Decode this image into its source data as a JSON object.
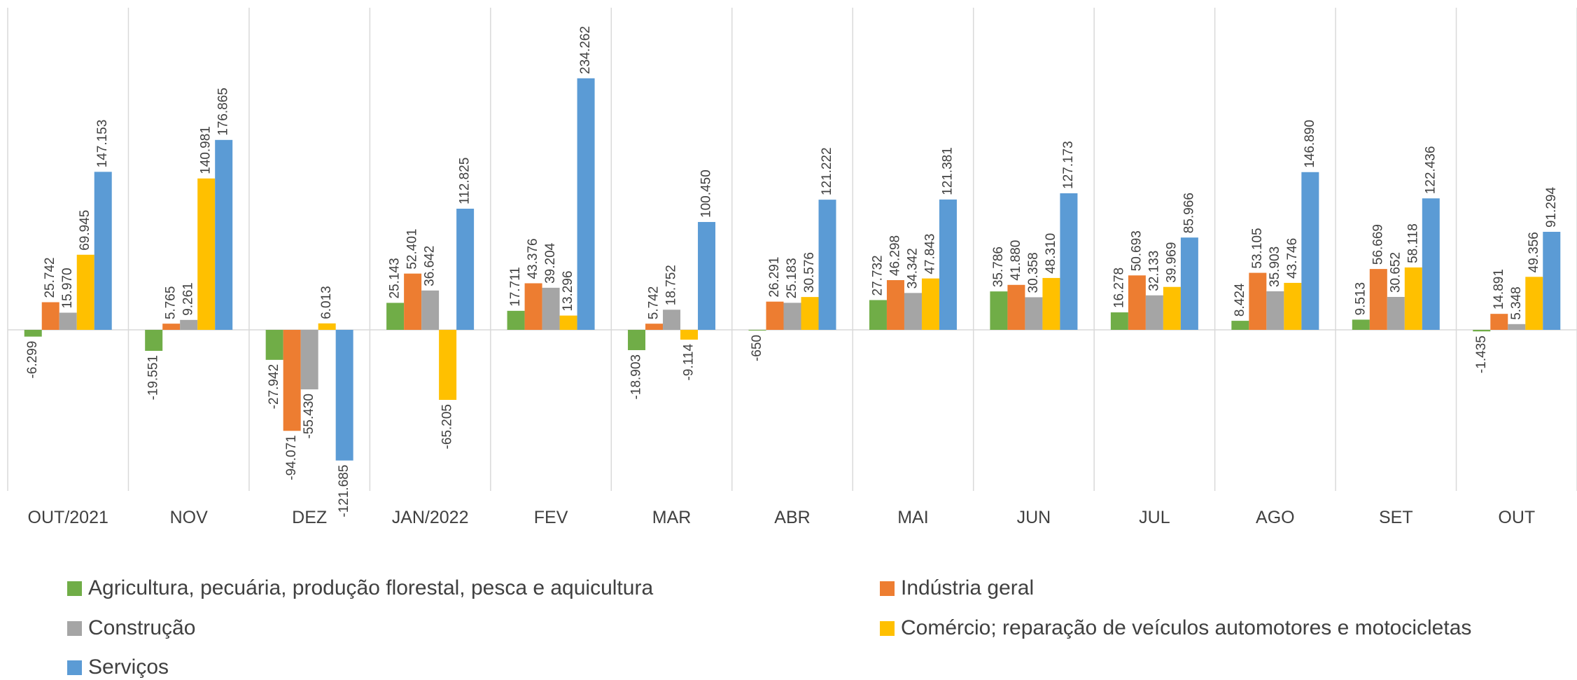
{
  "chart_data": {
    "type": "bar",
    "categories": [
      "OUT/2021",
      "NOV",
      "DEZ",
      "JAN/2022",
      "FEV",
      "MAR",
      "ABR",
      "MAI",
      "JUN",
      "JUL",
      "AGO",
      "SET",
      "OUT"
    ],
    "ylim": [
      -150000,
      300000
    ],
    "grid": true,
    "legend": "bottom",
    "series": [
      {
        "name": "Agricultura, pecuária, produção florestal, pesca e aquicultura",
        "color": "#70ad47",
        "values": [
          -6299,
          -19551,
          -27942,
          25143,
          17711,
          -18903,
          -650,
          27732,
          35786,
          16278,
          8424,
          9513,
          -1435
        ],
        "value_labels": [
          "-6.299",
          "-19.551",
          "-27.942",
          "25.143",
          "17.711",
          "-18.903",
          "-650",
          "27.732",
          "35.786",
          "16.278",
          "8.424",
          "9.513",
          "-1.435"
        ]
      },
      {
        "name": "Indústria geral",
        "color": "#ed7d31",
        "values": [
          25742,
          5765,
          -94071,
          52401,
          43376,
          5742,
          26291,
          46298,
          41880,
          50693,
          53105,
          56669,
          14891
        ],
        "value_labels": [
          "25.742",
          "5.765",
          "-94.071",
          "52.401",
          "43.376",
          "5.742",
          "26.291",
          "46.298",
          "41.880",
          "50.693",
          "53.105",
          "56.669",
          "14.891"
        ]
      },
      {
        "name": "Construção",
        "color": "#a5a5a5",
        "values": [
          15970,
          9261,
          -55430,
          36642,
          39204,
          18752,
          25183,
          34342,
          30358,
          32133,
          35903,
          30652,
          5348
        ],
        "value_labels": [
          "15.970",
          "9.261",
          "-55.430",
          "36.642",
          "39.204",
          "18.752",
          "25.183",
          "34.342",
          "30.358",
          "32.133",
          "35.903",
          "30.652",
          "5.348"
        ]
      },
      {
        "name": "Comércio; reparação de veículos automotores e motocicletas",
        "color": "#ffc000",
        "values": [
          69945,
          140981,
          6013,
          -65205,
          13296,
          -9114,
          30576,
          47843,
          48310,
          39969,
          43746,
          58118,
          49356
        ],
        "value_labels": [
          "69.945",
          "140.981",
          "6.013",
          "-65.205",
          "13.296",
          "-9.114",
          "30.576",
          "47.843",
          "48.310",
          "39.969",
          "43.746",
          "58.118",
          "49.356"
        ]
      },
      {
        "name": "Serviços",
        "color": "#5b9bd5",
        "values": [
          147153,
          176865,
          -121685,
          112825,
          234262,
          100450,
          121222,
          121381,
          127173,
          85966,
          146890,
          122436,
          91294
        ],
        "value_labels": [
          "147.153",
          "176.865",
          "-121.685",
          "112.825",
          "234.262",
          "100.450",
          "121.222",
          "121.381",
          "127.173",
          "85.966",
          "146.890",
          "122.436",
          "91.294"
        ]
      }
    ]
  }
}
